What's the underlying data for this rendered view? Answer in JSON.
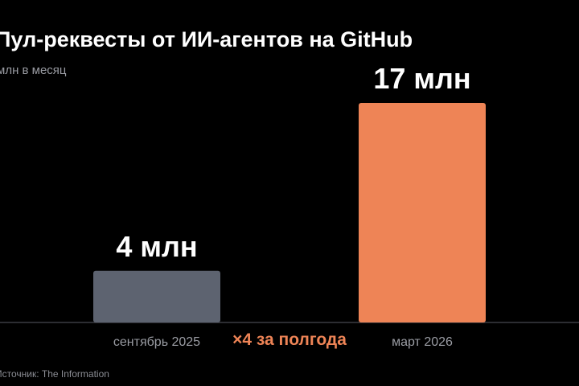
{
  "chart_data": {
    "type": "bar",
    "title": "Пул-реквесты от ИИ-агентов на GitHub",
    "subtitle": "млн в месяц",
    "xlabel": "",
    "ylabel": "",
    "ylim": [
      0,
      17
    ],
    "grid": false,
    "categories": [
      "сентябрь 2025",
      "март 2026"
    ],
    "values": [
      4,
      17
    ],
    "data_labels": [
      "4 млн",
      "17 млн"
    ],
    "bar_colors": [
      "#5d6370",
      "#ee8456"
    ],
    "annotation": "×4 за полгода",
    "annotation_color": "#ee8456",
    "source": "Источник: The Information"
  }
}
